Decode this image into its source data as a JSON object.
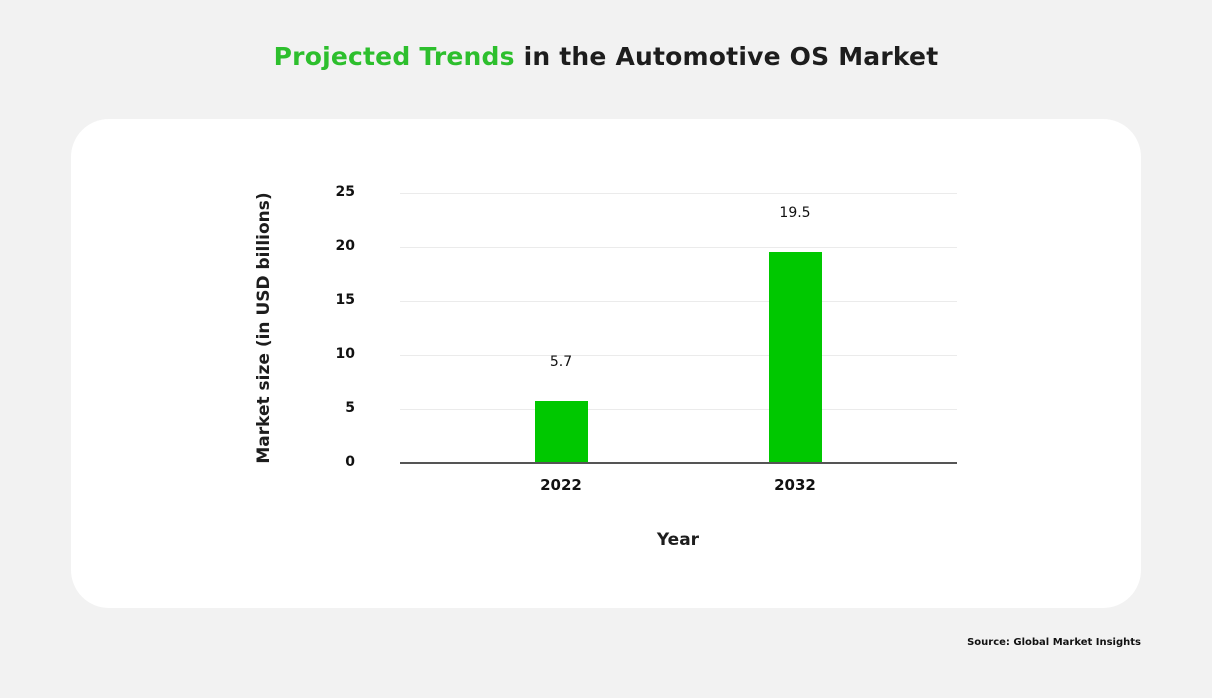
{
  "title": {
    "highlight": "Projected Trends",
    "rest": " in the Automotive OS Market"
  },
  "colors": {
    "accent": "#2dbf2d",
    "bar": "#00c800",
    "background": "#f2f2f2",
    "card": "#ffffff"
  },
  "source": "Source: Global Market Insights",
  "chart_data": {
    "type": "bar",
    "title": "Projected Trends in the Automotive OS Market",
    "categories": [
      "2022",
      "2032"
    ],
    "values": [
      5.7,
      19.5
    ],
    "data_labels": [
      "5.7",
      "19.5"
    ],
    "xlabel": "Year",
    "ylabel": "Market size (in USD billions)",
    "ylim": [
      0,
      25
    ],
    "yticks": [
      "0",
      "5",
      "10",
      "15",
      "20",
      "25"
    ],
    "grid": true,
    "legend": null,
    "source": "Source: Global Market Insights"
  }
}
